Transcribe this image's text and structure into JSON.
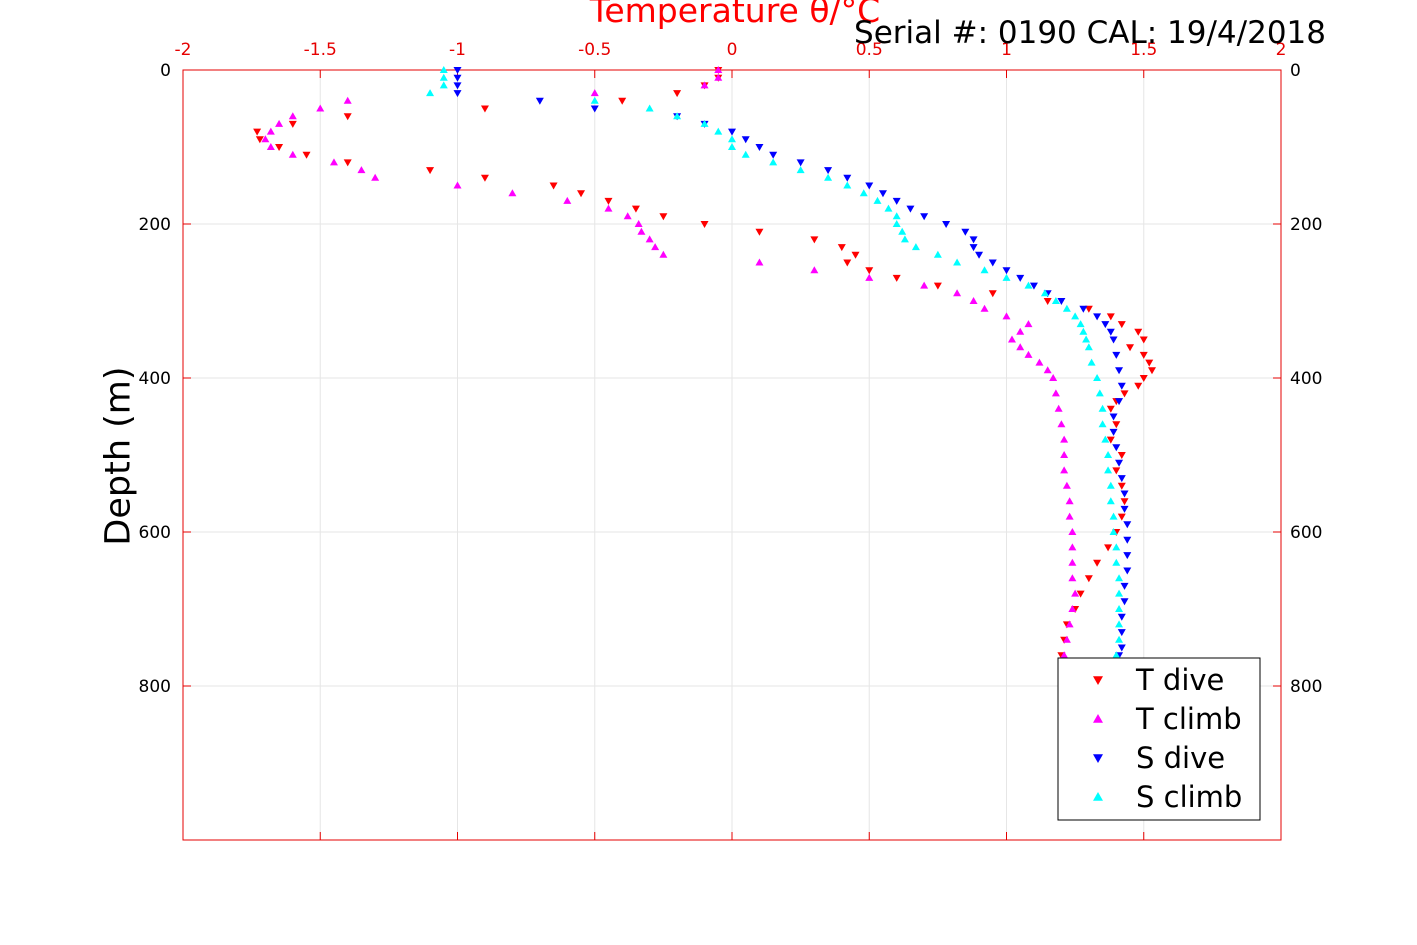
{
  "chart_data": {
    "type": "scatter",
    "title": "Serial #: 0190  CAL: 19/4/2018",
    "xlabel": "Temperature θ/°C",
    "ylabel": "Depth (m)",
    "xlim": [
      -2,
      2
    ],
    "ylim": [
      1000,
      0
    ],
    "y_reversed": true,
    "grid": true,
    "legend_position": "bottom-right",
    "x_ticks": [
      "-2",
      "-1.5",
      "-1",
      "-0.5",
      "0",
      "0.5",
      "1",
      "1.5",
      "2"
    ],
    "y_ticks_left": [
      "0",
      "200",
      "400",
      "600",
      "800"
    ],
    "y_ticks_right": [
      "0",
      "200",
      "400",
      "600",
      "800"
    ],
    "series": [
      {
        "name": "T dive",
        "color": "#ff0000",
        "marker": "triangle-down",
        "points": [
          [
            -0.05,
            0
          ],
          [
            -0.05,
            10
          ],
          [
            -0.1,
            20
          ],
          [
            -0.2,
            30
          ],
          [
            -0.4,
            40
          ],
          [
            -0.9,
            50
          ],
          [
            -1.4,
            60
          ],
          [
            -1.6,
            70
          ],
          [
            -1.73,
            80
          ],
          [
            -1.72,
            90
          ],
          [
            -1.65,
            100
          ],
          [
            -1.55,
            110
          ],
          [
            -1.4,
            120
          ],
          [
            -1.1,
            130
          ],
          [
            -0.9,
            140
          ],
          [
            -0.65,
            150
          ],
          [
            -0.55,
            160
          ],
          [
            -0.45,
            170
          ],
          [
            -0.35,
            180
          ],
          [
            -0.25,
            190
          ],
          [
            -0.1,
            200
          ],
          [
            0.1,
            210
          ],
          [
            0.3,
            220
          ],
          [
            0.4,
            230
          ],
          [
            0.45,
            240
          ],
          [
            0.42,
            250
          ],
          [
            0.5,
            260
          ],
          [
            0.6,
            270
          ],
          [
            0.75,
            280
          ],
          [
            0.95,
            290
          ],
          [
            1.15,
            300
          ],
          [
            1.3,
            310
          ],
          [
            1.38,
            320
          ],
          [
            1.42,
            330
          ],
          [
            1.48,
            340
          ],
          [
            1.5,
            350
          ],
          [
            1.45,
            360
          ],
          [
            1.5,
            370
          ],
          [
            1.52,
            380
          ],
          [
            1.53,
            390
          ],
          [
            1.5,
            400
          ],
          [
            1.48,
            410
          ],
          [
            1.43,
            420
          ],
          [
            1.4,
            430
          ],
          [
            1.38,
            440
          ],
          [
            1.4,
            460
          ],
          [
            1.38,
            480
          ],
          [
            1.42,
            500
          ],
          [
            1.4,
            520
          ],
          [
            1.42,
            540
          ],
          [
            1.43,
            560
          ],
          [
            1.42,
            580
          ],
          [
            1.4,
            600
          ],
          [
            1.37,
            620
          ],
          [
            1.33,
            640
          ],
          [
            1.3,
            660
          ],
          [
            1.27,
            680
          ],
          [
            1.25,
            700
          ],
          [
            1.22,
            720
          ],
          [
            1.21,
            740
          ],
          [
            1.2,
            760
          ]
        ]
      },
      {
        "name": "T climb",
        "color": "#ff00ff",
        "marker": "triangle-up",
        "points": [
          [
            -0.05,
            0
          ],
          [
            -0.05,
            10
          ],
          [
            -0.1,
            20
          ],
          [
            -0.5,
            30
          ],
          [
            -1.4,
            40
          ],
          [
            -1.5,
            50
          ],
          [
            -1.6,
            60
          ],
          [
            -1.65,
            70
          ],
          [
            -1.68,
            80
          ],
          [
            -1.7,
            90
          ],
          [
            -1.68,
            100
          ],
          [
            -1.6,
            110
          ],
          [
            -1.45,
            120
          ],
          [
            -1.35,
            130
          ],
          [
            -1.3,
            140
          ],
          [
            -1.0,
            150
          ],
          [
            -0.8,
            160
          ],
          [
            -0.6,
            170
          ],
          [
            -0.45,
            180
          ],
          [
            -0.38,
            190
          ],
          [
            -0.34,
            200
          ],
          [
            -0.33,
            210
          ],
          [
            -0.3,
            220
          ],
          [
            -0.28,
            230
          ],
          [
            -0.25,
            240
          ],
          [
            0.1,
            250
          ],
          [
            0.3,
            260
          ],
          [
            0.5,
            270
          ],
          [
            0.7,
            280
          ],
          [
            0.82,
            290
          ],
          [
            0.88,
            300
          ],
          [
            0.92,
            310
          ],
          [
            1.0,
            320
          ],
          [
            1.08,
            330
          ],
          [
            1.05,
            340
          ],
          [
            1.02,
            350
          ],
          [
            1.05,
            360
          ],
          [
            1.08,
            370
          ],
          [
            1.12,
            380
          ],
          [
            1.15,
            390
          ],
          [
            1.17,
            400
          ],
          [
            1.18,
            420
          ],
          [
            1.19,
            440
          ],
          [
            1.2,
            460
          ],
          [
            1.21,
            480
          ],
          [
            1.21,
            500
          ],
          [
            1.21,
            520
          ],
          [
            1.22,
            540
          ],
          [
            1.23,
            560
          ],
          [
            1.23,
            580
          ],
          [
            1.24,
            600
          ],
          [
            1.24,
            620
          ],
          [
            1.24,
            640
          ],
          [
            1.24,
            660
          ],
          [
            1.25,
            680
          ],
          [
            1.24,
            700
          ],
          [
            1.23,
            720
          ],
          [
            1.22,
            740
          ],
          [
            1.21,
            760
          ]
        ]
      },
      {
        "name": "S dive",
        "color": "#0000ff",
        "marker": "triangle-down",
        "points": [
          [
            -1.0,
            0
          ],
          [
            -1.0,
            10
          ],
          [
            -1.0,
            20
          ],
          [
            -1.0,
            30
          ],
          [
            -0.7,
            40
          ],
          [
            -0.5,
            50
          ],
          [
            -0.2,
            60
          ],
          [
            -0.1,
            70
          ],
          [
            0.0,
            80
          ],
          [
            0.05,
            90
          ],
          [
            0.1,
            100
          ],
          [
            0.15,
            110
          ],
          [
            0.25,
            120
          ],
          [
            0.35,
            130
          ],
          [
            0.42,
            140
          ],
          [
            0.5,
            150
          ],
          [
            0.55,
            160
          ],
          [
            0.6,
            170
          ],
          [
            0.65,
            180
          ],
          [
            0.7,
            190
          ],
          [
            0.78,
            200
          ],
          [
            0.85,
            210
          ],
          [
            0.88,
            220
          ],
          [
            0.88,
            230
          ],
          [
            0.9,
            240
          ],
          [
            0.95,
            250
          ],
          [
            1.0,
            260
          ],
          [
            1.05,
            270
          ],
          [
            1.1,
            280
          ],
          [
            1.15,
            290
          ],
          [
            1.2,
            300
          ],
          [
            1.28,
            310
          ],
          [
            1.33,
            320
          ],
          [
            1.36,
            330
          ],
          [
            1.38,
            340
          ],
          [
            1.39,
            350
          ],
          [
            1.4,
            370
          ],
          [
            1.41,
            390
          ],
          [
            1.42,
            410
          ],
          [
            1.41,
            430
          ],
          [
            1.39,
            450
          ],
          [
            1.39,
            470
          ],
          [
            1.4,
            490
          ],
          [
            1.41,
            510
          ],
          [
            1.42,
            530
          ],
          [
            1.43,
            550
          ],
          [
            1.43,
            570
          ],
          [
            1.44,
            590
          ],
          [
            1.44,
            610
          ],
          [
            1.44,
            630
          ],
          [
            1.44,
            650
          ],
          [
            1.43,
            670
          ],
          [
            1.43,
            690
          ],
          [
            1.42,
            710
          ],
          [
            1.42,
            730
          ],
          [
            1.42,
            750
          ],
          [
            1.41,
            760
          ]
        ]
      },
      {
        "name": "S climb",
        "color": "#00ffff",
        "marker": "triangle-up",
        "points": [
          [
            -1.05,
            0
          ],
          [
            -1.05,
            10
          ],
          [
            -1.05,
            20
          ],
          [
            -1.1,
            30
          ],
          [
            -0.5,
            40
          ],
          [
            -0.3,
            50
          ],
          [
            -0.2,
            60
          ],
          [
            -0.1,
            70
          ],
          [
            -0.05,
            80
          ],
          [
            0.0,
            90
          ],
          [
            0.0,
            100
          ],
          [
            0.05,
            110
          ],
          [
            0.15,
            120
          ],
          [
            0.25,
            130
          ],
          [
            0.35,
            140
          ],
          [
            0.42,
            150
          ],
          [
            0.48,
            160
          ],
          [
            0.53,
            170
          ],
          [
            0.57,
            180
          ],
          [
            0.6,
            190
          ],
          [
            0.6,
            200
          ],
          [
            0.62,
            210
          ],
          [
            0.63,
            220
          ],
          [
            0.67,
            230
          ],
          [
            0.75,
            240
          ],
          [
            0.82,
            250
          ],
          [
            0.92,
            260
          ],
          [
            1.0,
            270
          ],
          [
            1.08,
            280
          ],
          [
            1.14,
            290
          ],
          [
            1.18,
            300
          ],
          [
            1.22,
            310
          ],
          [
            1.25,
            320
          ],
          [
            1.27,
            330
          ],
          [
            1.28,
            340
          ],
          [
            1.29,
            350
          ],
          [
            1.3,
            360
          ],
          [
            1.31,
            380
          ],
          [
            1.33,
            400
          ],
          [
            1.34,
            420
          ],
          [
            1.35,
            440
          ],
          [
            1.35,
            460
          ],
          [
            1.36,
            480
          ],
          [
            1.37,
            500
          ],
          [
            1.37,
            520
          ],
          [
            1.38,
            540
          ],
          [
            1.38,
            560
          ],
          [
            1.39,
            580
          ],
          [
            1.39,
            600
          ],
          [
            1.4,
            620
          ],
          [
            1.4,
            640
          ],
          [
            1.41,
            660
          ],
          [
            1.41,
            680
          ],
          [
            1.41,
            700
          ],
          [
            1.41,
            720
          ],
          [
            1.41,
            740
          ],
          [
            1.4,
            760
          ]
        ]
      }
    ]
  }
}
